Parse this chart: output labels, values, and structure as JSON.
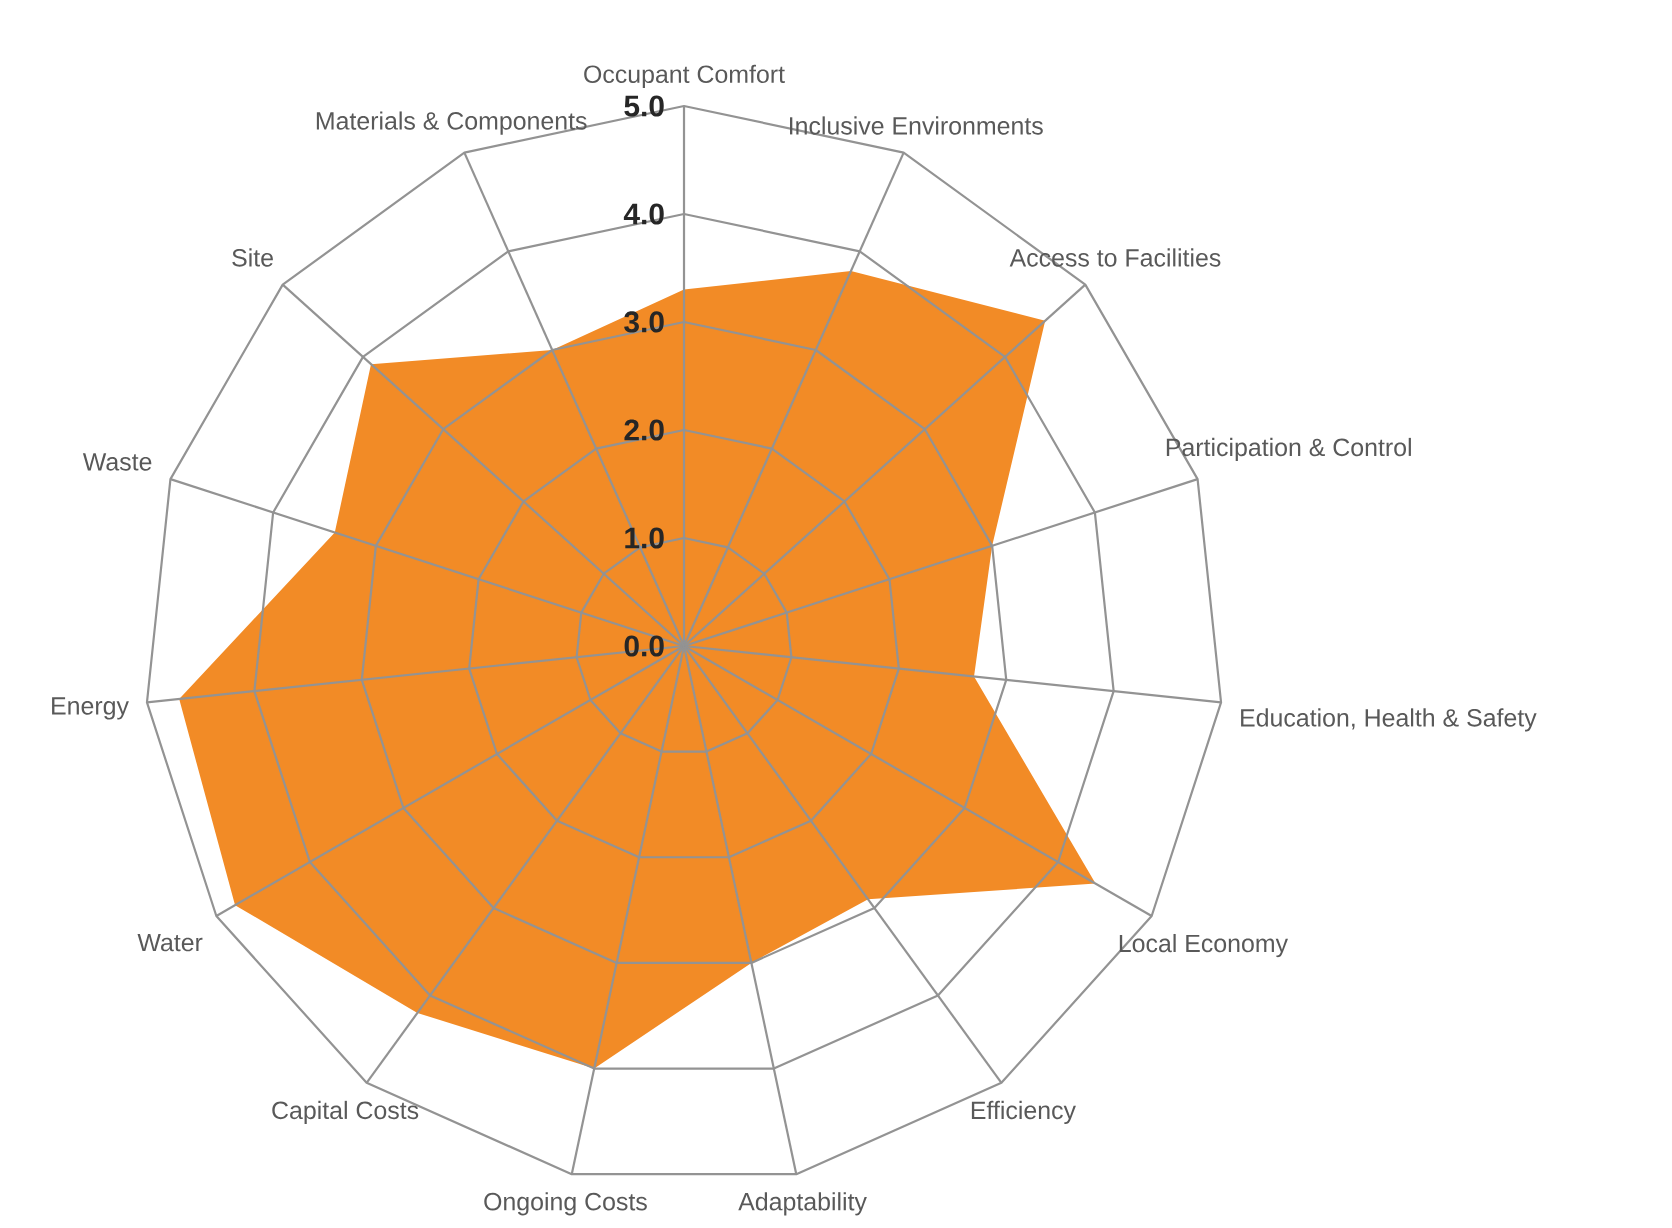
{
  "chart_data": {
    "type": "radar",
    "categories": [
      "Occupant Comfort",
      "Inclusive Environments",
      "Access to Facilities",
      "Participation & Control",
      "Education, Health & Safety",
      "Local Economy",
      "Efficiency",
      "Adaptability",
      "Ongoing Costs",
      "Capital Costs",
      "Water",
      "Energy",
      "Waste",
      "Site",
      "Materials & Components"
    ],
    "series": [
      {
        "color": "#f28b26",
        "values": [
          3.3,
          3.8,
          4.5,
          3.0,
          2.7,
          4.4,
          2.9,
          3.0,
          4.0,
          4.2,
          4.8,
          4.7,
          3.4,
          3.9,
          3.0
        ]
      }
    ],
    "ylim": [
      0,
      5
    ],
    "yticks": [
      {
        "value": 0,
        "label": "0.0"
      },
      {
        "value": 1,
        "label": "1.0"
      },
      {
        "value": 2,
        "label": "2.0"
      },
      {
        "value": 3,
        "label": "3.0"
      },
      {
        "value": 4,
        "label": "4.0"
      },
      {
        "value": 5,
        "label": "5.0"
      }
    ],
    "grid": true
  }
}
